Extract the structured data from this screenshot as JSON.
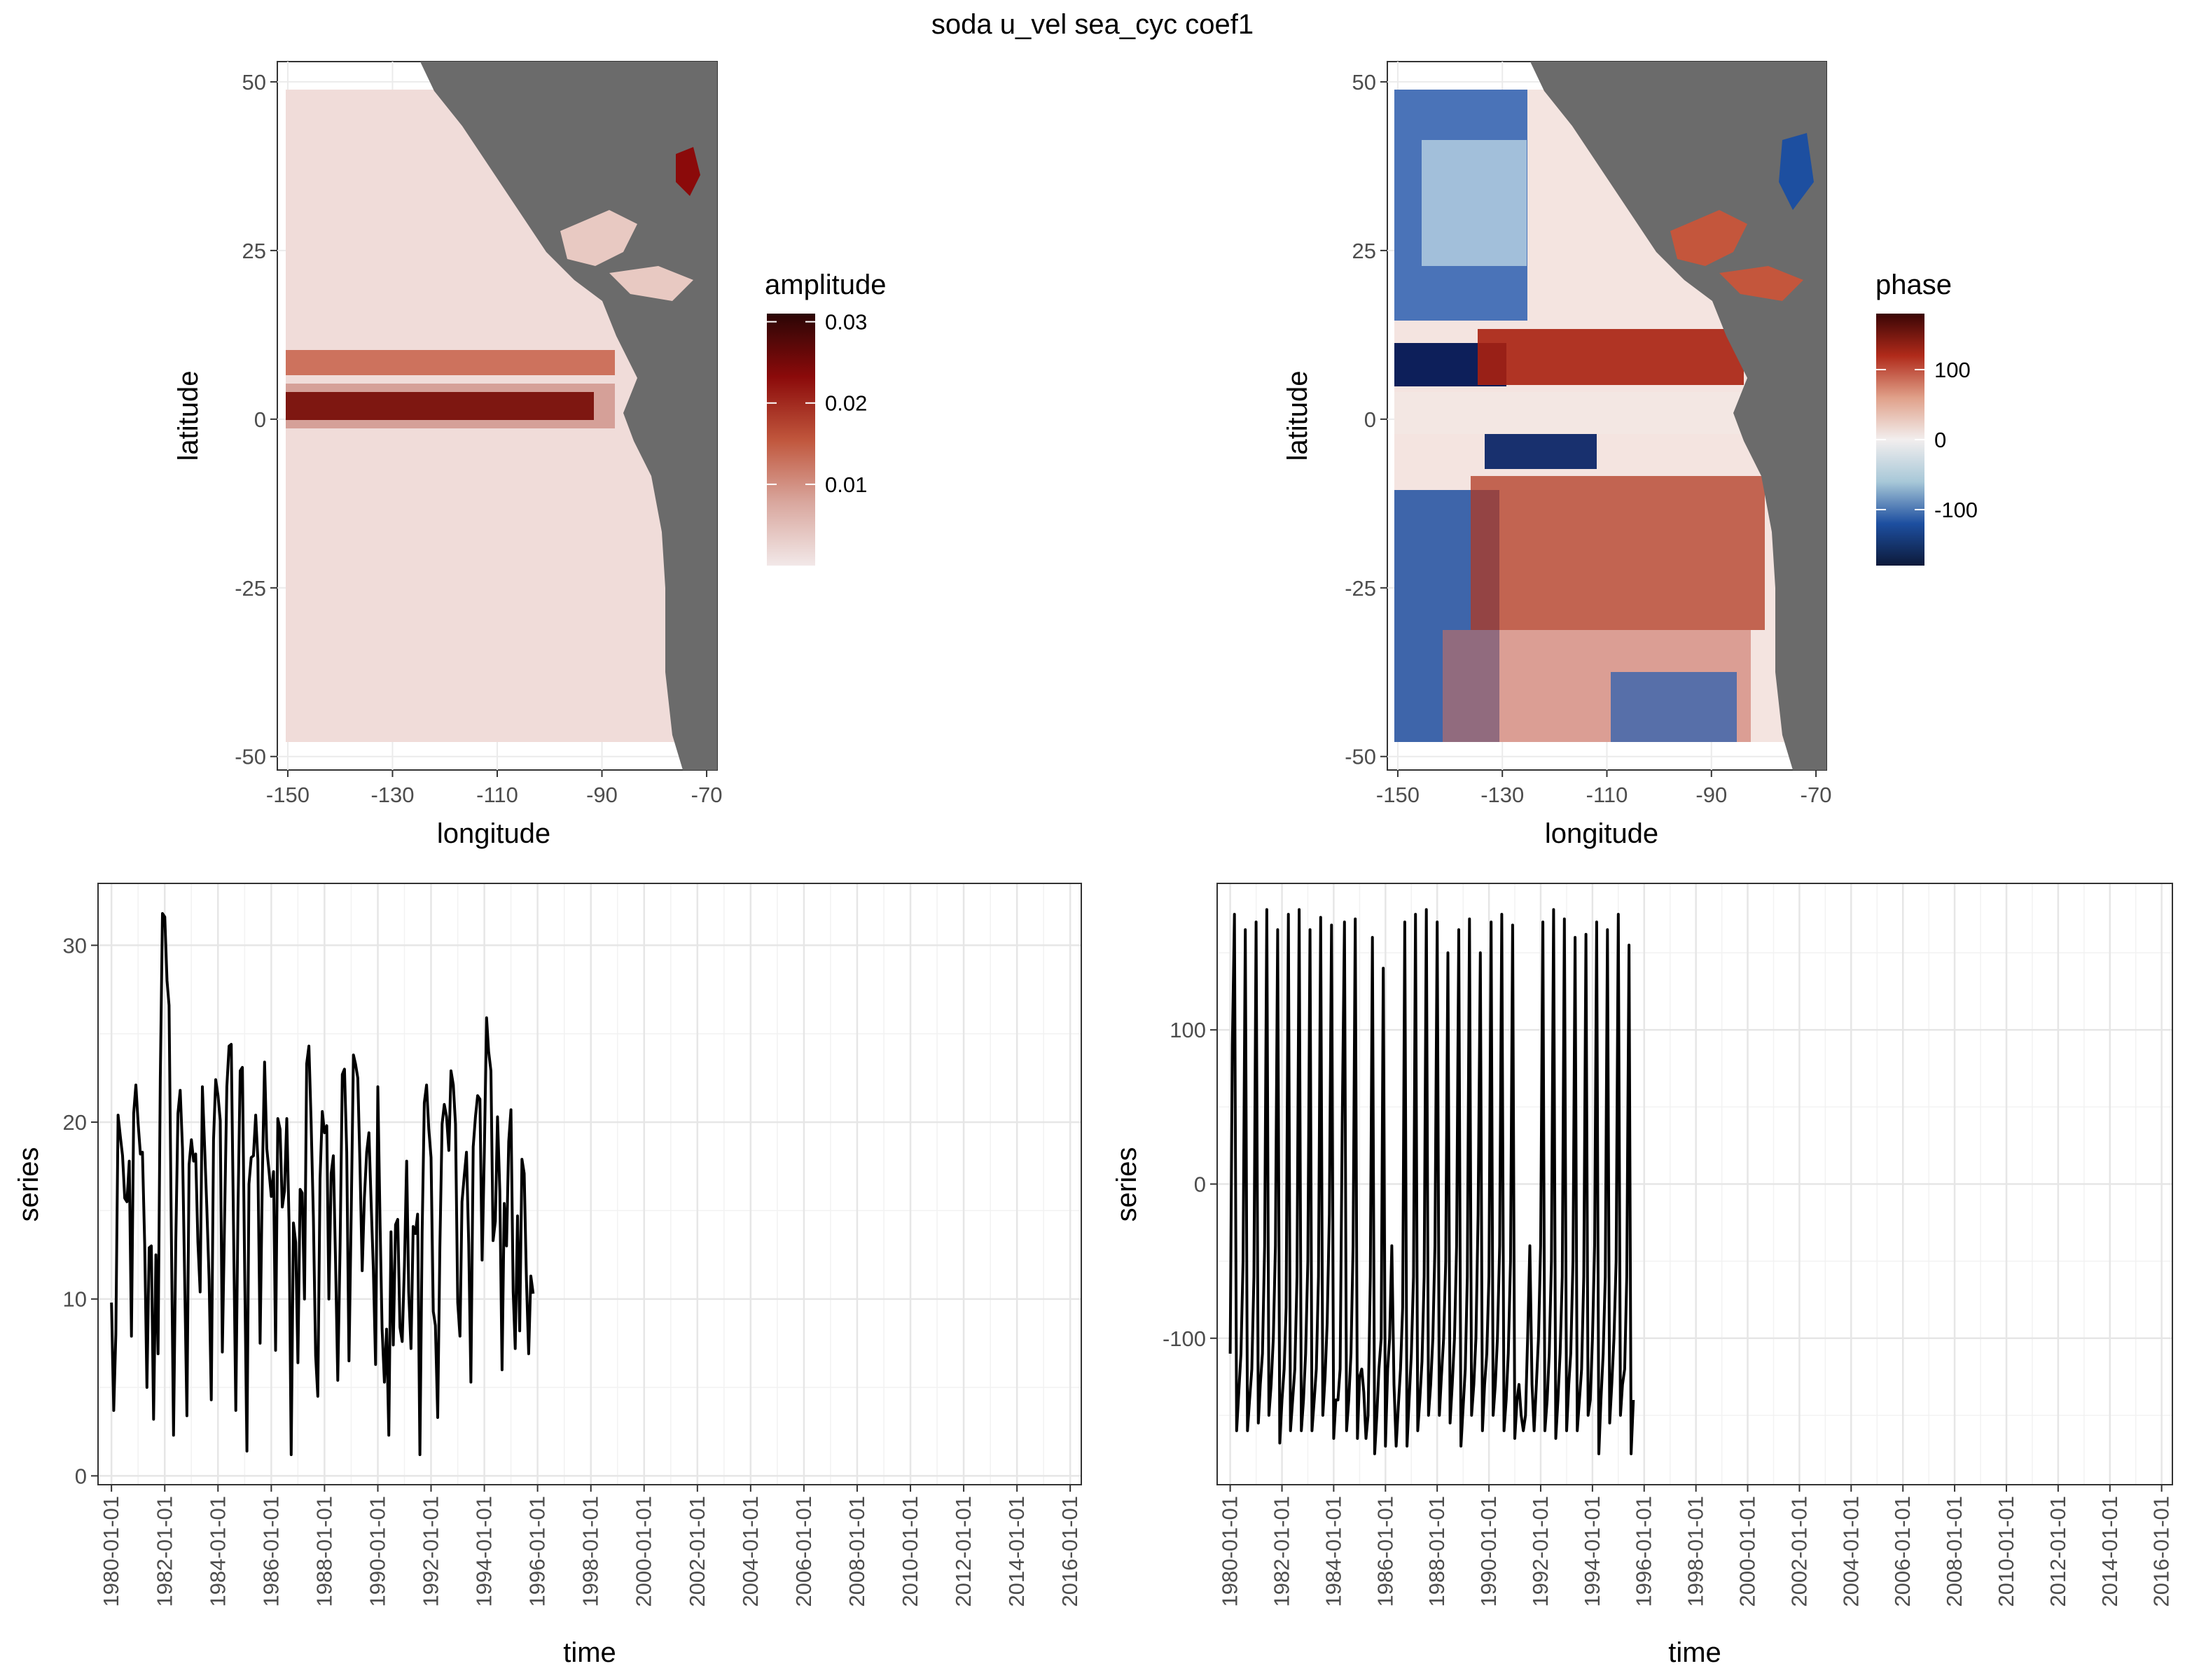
{
  "figure": {
    "title": "soda u_vel sea_cyc coef1"
  },
  "chart_data": [
    {
      "type": "heatmap",
      "name": "amplitude-map",
      "xlabel": "longitude",
      "ylabel": "latitude",
      "xlim": [
        -152,
        -68
      ],
      "ylim": [
        -52,
        53
      ],
      "xticks": [
        -150,
        -130,
        -110,
        -90,
        -70
      ],
      "yticks": [
        -50,
        -25,
        0,
        25,
        50
      ],
      "legend": {
        "title": "amplitude",
        "range": [
          0,
          0.031
        ],
        "ticks": [
          0.01,
          0.02,
          0.03
        ],
        "tick_labels": [
          "0.01",
          "0.02",
          "0.03"
        ],
        "colors": [
          "#f2e8e8",
          "#d9a79e",
          "#c0563c",
          "#8b0a0a",
          "#2b0606"
        ]
      },
      "land_color": "#6b6b6b",
      "data_extent": {
        "lon": [
          -150,
          -70
        ],
        "lat": [
          -48,
          48
        ]
      }
    },
    {
      "type": "heatmap",
      "name": "phase-map",
      "xlabel": "longitude",
      "ylabel": "latitude",
      "xlim": [
        -152,
        -68
      ],
      "ylim": [
        -52,
        53
      ],
      "xticks": [
        -150,
        -130,
        -110,
        -90,
        -70
      ],
      "yticks": [
        -50,
        -25,
        0,
        25,
        50
      ],
      "legend": {
        "title": "phase",
        "range": [
          -180,
          180
        ],
        "ticks": [
          -100,
          0,
          100
        ],
        "tick_labels": [
          "-100",
          "0",
          "100"
        ],
        "colors": [
          "#0d1a3a",
          "#1d4fa0",
          "#a8c8d8",
          "#f2eeee",
          "#e0a089",
          "#b02a1a",
          "#3a0505"
        ]
      },
      "land_color": "#6b6b6b",
      "data_extent": {
        "lon": [
          -150,
          -70
        ],
        "lat": [
          -48,
          48
        ]
      }
    },
    {
      "type": "line",
      "name": "amplitude-series",
      "xlabel": "time",
      "ylabel": "series",
      "xlim": [
        "1979-07-01",
        "2016-06-01"
      ],
      "ylim": [
        -0.5,
        33.5
      ],
      "yticks": [
        0,
        10,
        20,
        30
      ],
      "xticks": [
        "1980-01-01",
        "1982-01-01",
        "1984-01-01",
        "1986-01-01",
        "1988-01-01",
        "1990-01-01",
        "1992-01-01",
        "1994-01-01",
        "1996-01-01",
        "1998-01-01",
        "2000-01-01",
        "2002-01-01",
        "2004-01-01",
        "2006-01-01",
        "2008-01-01",
        "2010-01-01",
        "2012-01-01",
        "2014-01-01",
        "2016-01-01"
      ],
      "grid": true,
      "series": [
        {
          "start": "1980-01",
          "frequency": "monthly",
          "values": [
            9.8,
            3.7,
            8,
            20.4,
            19.2,
            18.1,
            15.7,
            15.5,
            17.8,
            7.9,
            20.5,
            22.1,
            19.9,
            18.2,
            18.3,
            13.1,
            5.0,
            12.9,
            13.0,
            3.2,
            12.5,
            6.9,
            22.5,
            31.8,
            31.6,
            28,
            26.6,
            14,
            2.3,
            13.2,
            20.5,
            21.8,
            18.5,
            11.1,
            3.4,
            17.6,
            19.0,
            17.8,
            18.2,
            13.2,
            10.4,
            22,
            18.7,
            15.2,
            11.1,
            4.3,
            19.0,
            22.4,
            21.5,
            20.1,
            7.0,
            14.5,
            22.0,
            24.3,
            24.4,
            14.2,
            3.7,
            15.0,
            22.9,
            23.1,
            11.5,
            1.4,
            16.5,
            18.0,
            18.1,
            20.4,
            17.9,
            7.5,
            17.1,
            23.4,
            18.5,
            17.2,
            15.8,
            17.2,
            7.1,
            20.2,
            19.6,
            15.2,
            16.1,
            20.2,
            14.4,
            1.2,
            14.3,
            13.2,
            6.4,
            16.2,
            16.0,
            10,
            23.3,
            24.3,
            20.1,
            14.6,
            6.8,
            4.5,
            16.8,
            20.6,
            19.4,
            19.8,
            10,
            17.1,
            18.1,
            12,
            5.4,
            12.9,
            22.7,
            23.0,
            18.3,
            6.5,
            14.8,
            23.8,
            23.3,
            22.5,
            17.6,
            11.6,
            15.7,
            18.3,
            19.4,
            15.5,
            11.7,
            6.3,
            22.0,
            14.3,
            8.3,
            5.3,
            8.3,
            2.3,
            13.8,
            7.4,
            14.2,
            14.5,
            8.4,
            7.6,
            11.9,
            17.8,
            10.4,
            7.2,
            14.1,
            13.7,
            14.8,
            1.2,
            13.8,
            21.1,
            22.1,
            19.6,
            18.0,
            9.3,
            8.5,
            3.3,
            12.9,
            19.9,
            21.0,
            20.3,
            18.4,
            22.9,
            22.1,
            19.9,
            9.8,
            7.9,
            15.5,
            17.0,
            18.3,
            13.1,
            5.3,
            18.6,
            20.3,
            21.5,
            21.3,
            12.2,
            18.3,
            25.9,
            24.0,
            22.9,
            13.3,
            14.4,
            20.3,
            16.1,
            6.0,
            15.4,
            13.0,
            18.9,
            20.7,
            10.4,
            7.2,
            14.7,
            8.2,
            17.9,
            17.1,
            11.1,
            6.9,
            11.3,
            10.3
          ]
        }
      ]
    },
    {
      "type": "line",
      "name": "phase-series",
      "xlabel": "time",
      "ylabel": "series",
      "xlim": [
        "1979-07-01",
        "2016-06-01"
      ],
      "ylim": [
        -195,
        195
      ],
      "yticks": [
        -100,
        0,
        100
      ],
      "xticks": [
        "1980-01-01",
        "1982-01-01",
        "1984-01-01",
        "1986-01-01",
        "1988-01-01",
        "1990-01-01",
        "1992-01-01",
        "1994-01-01",
        "1996-01-01",
        "1998-01-01",
        "2000-01-01",
        "2002-01-01",
        "2004-01-01",
        "2006-01-01",
        "2008-01-01",
        "2010-01-01",
        "2012-01-01",
        "2014-01-01",
        "2016-01-01"
      ],
      "grid": true,
      "series": [
        {
          "start": "1980-01",
          "frequency": "monthly",
          "values": [
            -110,
            90,
            175,
            -160,
            -135,
            -110,
            -50,
            165,
            -160,
            -140,
            -120,
            -60,
            170,
            -155,
            -130,
            -110,
            -40,
            178,
            -150,
            -130,
            -100,
            -40,
            165,
            -168,
            -140,
            -120,
            -80,
            175,
            -160,
            -140,
            -120,
            -60,
            178,
            -160,
            -140,
            -110,
            -50,
            165,
            -160,
            -140,
            -120,
            -60,
            173,
            -150,
            -125,
            -90,
            -20,
            168,
            -165,
            -140,
            -140,
            -120,
            40,
            170,
            -160,
            -140,
            -110,
            -40,
            172,
            -165,
            -125,
            -120,
            -135,
            -165,
            -150,
            -60,
            160,
            -175,
            -150,
            -120,
            -100,
            140,
            -170,
            -120,
            -100,
            -40,
            -130,
            -170,
            -145,
            -120,
            -80,
            170,
            -170,
            -140,
            -110,
            -60,
            175,
            -160,
            -140,
            -115,
            -60,
            178,
            -150,
            -130,
            -100,
            -40,
            170,
            -150,
            -125,
            -100,
            -50,
            150,
            -155,
            -130,
            -100,
            -40,
            165,
            -170,
            -145,
            -120,
            -60,
            172,
            -150,
            -130,
            -100,
            -20,
            150,
            -160,
            -130,
            -110,
            -60,
            170,
            -150,
            -130,
            -100,
            -40,
            175,
            -160,
            -140,
            -110,
            -50,
            168,
            -165,
            -140,
            -130,
            -150,
            -160,
            -150,
            -100,
            -40,
            -130,
            -160,
            -130,
            -100,
            -40,
            170,
            -160,
            -140,
            -110,
            -50,
            178,
            -165,
            -140,
            -110,
            -60,
            172,
            -160,
            -130,
            -110,
            -50,
            160,
            -160,
            -140,
            -120,
            -60,
            162,
            -150,
            -140,
            -100,
            -40,
            170,
            -175,
            -140,
            -110,
            -60,
            165,
            -155,
            -130,
            -100,
            -50,
            175,
            -150,
            -130,
            -120,
            -60,
            155,
            -175,
            -140
          ]
        }
      ]
    }
  ]
}
